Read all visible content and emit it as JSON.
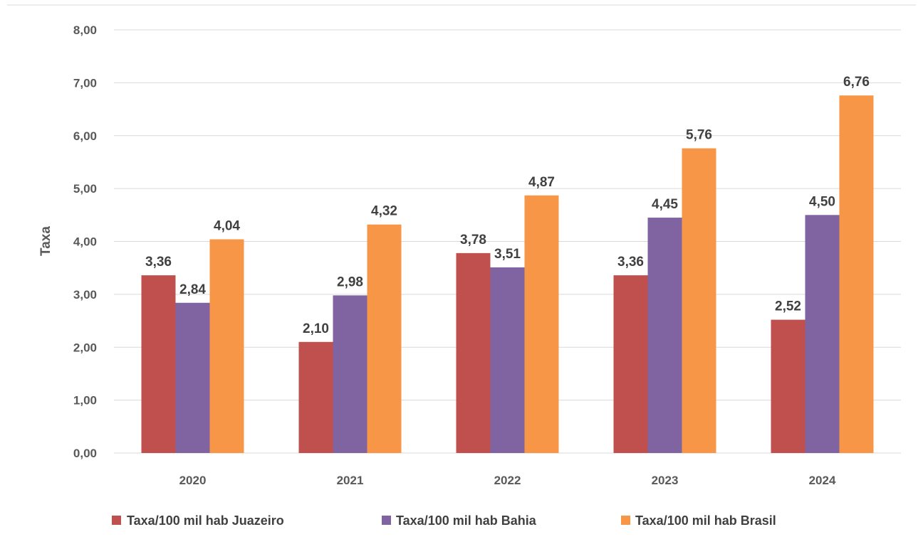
{
  "chart_data": {
    "type": "bar",
    "title": "",
    "xlabel": "",
    "ylabel": "Taxa",
    "ylim": [
      0,
      8
    ],
    "yticks": [
      "0,00",
      "1,00",
      "2,00",
      "3,00",
      "4,00",
      "5,00",
      "6,00",
      "7,00",
      "8,00"
    ],
    "categories": [
      "2020",
      "2021",
      "2022",
      "2023",
      "2024"
    ],
    "series": [
      {
        "name": "Taxa/100 mil hab Juazeiro",
        "color": "#c0504d",
        "values": [
          3.36,
          2.1,
          3.78,
          3.36,
          2.52
        ],
        "labels": [
          "3,36",
          "2,10",
          "3,78",
          "3,36",
          "2,52"
        ]
      },
      {
        "name": "Taxa/100 mil hab Bahia",
        "color": "#8064a2",
        "values": [
          2.84,
          2.98,
          3.51,
          4.45,
          4.5
        ],
        "labels": [
          "2,84",
          "2,98",
          "3,51",
          "4,45",
          "4,50"
        ]
      },
      {
        "name": "Taxa/100 mil hab Brasil",
        "color": "#f79646",
        "values": [
          4.04,
          4.32,
          4.87,
          5.76,
          6.76
        ],
        "labels": [
          "4,04",
          "4,32",
          "4,87",
          "5,76",
          "6,76"
        ]
      }
    ],
    "grid": true,
    "legend_position": "bottom"
  }
}
